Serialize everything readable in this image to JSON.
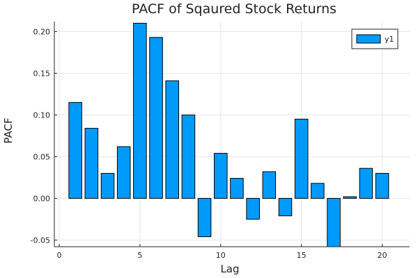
{
  "chart_data": {
    "type": "bar",
    "title": "PACF of Sqaured Stock Returns",
    "xlabel": "Lag",
    "ylabel": "PACF",
    "x": [
      1,
      2,
      3,
      4,
      5,
      6,
      7,
      8,
      9,
      10,
      11,
      12,
      13,
      14,
      15,
      16,
      17,
      18,
      19,
      20
    ],
    "series": [
      {
        "name": "y1",
        "color": "#009AFA",
        "values": [
          0.115,
          0.084,
          0.03,
          0.062,
          0.21,
          0.193,
          0.141,
          0.1,
          -0.046,
          0.054,
          0.024,
          -0.025,
          0.032,
          -0.021,
          0.095,
          0.018,
          -0.062,
          0.002,
          0.036,
          0.03
        ]
      }
    ],
    "xlim": [
      -0.3,
      21.7
    ],
    "ylim": [
      -0.058,
      0.212
    ],
    "xticks": [
      0,
      5,
      10,
      15,
      20
    ],
    "xtick_labels": [
      "0",
      "5",
      "10",
      "15",
      "20"
    ],
    "yticks": [
      -0.05,
      0.0,
      0.05,
      0.1,
      0.15,
      0.2
    ],
    "ytick_labels": [
      "-0.05",
      "0.00",
      "0.05",
      "0.10",
      "0.15",
      "0.20"
    ],
    "grid": true,
    "legend": {
      "position": "top-right",
      "entries": [
        "y1"
      ]
    }
  }
}
